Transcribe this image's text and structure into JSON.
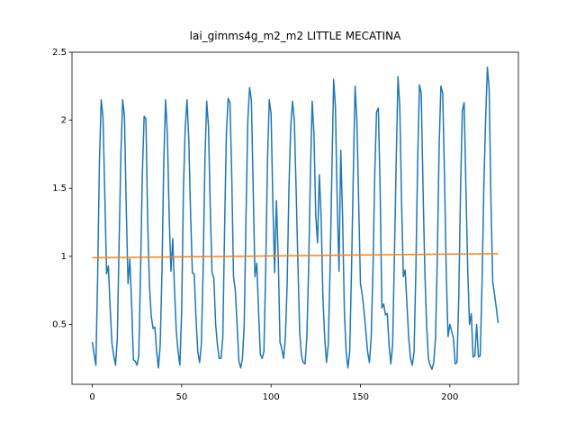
{
  "chart_data": {
    "type": "line",
    "title": "lai_gimms4g_m2_m2 LITTLE MECATINA",
    "xlim": [
      -11.35,
      238.35
    ],
    "xticks": [
      0,
      50,
      100,
      150,
      200
    ],
    "ylim": [
      0.06,
      2.5
    ],
    "yticks": [
      0.5,
      1.0,
      1.5,
      2.0,
      2.5
    ],
    "series": [
      {
        "color": "#1f77b4",
        "x": [
          0,
          1,
          2,
          3,
          4,
          5,
          6,
          7,
          8,
          9,
          10,
          11,
          12,
          13,
          14,
          15,
          16,
          17,
          18,
          19,
          20,
          21,
          22,
          23,
          24,
          25,
          26,
          27,
          28,
          29,
          30,
          31,
          32,
          33,
          34,
          35,
          36,
          37,
          38,
          39,
          40,
          41,
          42,
          43,
          44,
          45,
          46,
          47,
          48,
          49,
          50,
          51,
          52,
          53,
          54,
          55,
          56,
          57,
          58,
          59,
          60,
          61,
          62,
          63,
          64,
          65,
          66,
          67,
          68,
          69,
          70,
          71,
          72,
          73,
          74,
          75,
          76,
          77,
          78,
          79,
          80,
          81,
          82,
          83,
          84,
          85,
          86,
          87,
          88,
          89,
          90,
          91,
          92,
          93,
          94,
          95,
          96,
          97,
          98,
          99,
          100,
          101,
          102,
          103,
          104,
          105,
          106,
          107,
          108,
          109,
          110,
          111,
          112,
          113,
          114,
          115,
          116,
          117,
          118,
          119,
          120,
          121,
          122,
          123,
          124,
          125,
          126,
          127,
          128,
          129,
          130,
          131,
          132,
          133,
          134,
          135,
          136,
          137,
          138,
          139,
          140,
          141,
          142,
          143,
          144,
          145,
          146,
          147,
          148,
          149,
          150,
          151,
          152,
          153,
          154,
          155,
          156,
          157,
          158,
          159,
          160,
          161,
          162,
          163,
          164,
          165,
          166,
          167,
          168,
          169,
          170,
          171,
          172,
          173,
          174,
          175,
          176,
          177,
          178,
          179,
          180,
          181,
          182,
          183,
          184,
          185,
          186,
          187,
          188,
          189,
          190,
          191,
          192,
          193,
          194,
          195,
          196,
          197,
          198,
          199,
          200,
          201,
          202,
          203,
          204,
          205,
          206,
          207,
          208,
          209,
          210,
          211,
          212,
          213,
          214,
          215,
          216,
          217,
          218,
          219,
          220,
          221,
          222,
          223,
          224,
          225,
          226,
          227
        ],
        "values": [
          0.37,
          0.28,
          0.2,
          0.85,
          1.7,
          2.15,
          2.02,
          1.45,
          0.87,
          0.93,
          0.62,
          0.36,
          0.27,
          0.2,
          0.4,
          1.1,
          1.75,
          2.15,
          2.03,
          1.35,
          0.8,
          0.98,
          0.65,
          0.24,
          0.23,
          0.2,
          0.27,
          0.9,
          1.6,
          2.03,
          2.01,
          1.25,
          0.78,
          0.56,
          0.47,
          0.48,
          0.3,
          0.18,
          0.35,
          0.9,
          1.7,
          2.15,
          1.9,
          1.3,
          0.89,
          1.13,
          0.75,
          0.45,
          0.3,
          0.2,
          0.6,
          1.5,
          1.95,
          2.15,
          1.85,
          1.3,
          0.88,
          0.87,
          0.55,
          0.3,
          0.22,
          0.35,
          0.9,
          1.7,
          2.14,
          1.95,
          1.35,
          0.88,
          0.84,
          0.5,
          0.35,
          0.25,
          0.25,
          0.4,
          1.2,
          1.9,
          2.16,
          2.13,
          1.6,
          0.85,
          0.75,
          0.5,
          0.23,
          0.18,
          0.25,
          0.5,
          1.3,
          2.0,
          2.24,
          2.15,
          1.5,
          0.85,
          0.95,
          0.6,
          0.28,
          0.25,
          0.3,
          0.9,
          1.7,
          2.15,
          2.05,
          1.4,
          0.88,
          1.41,
          1.0,
          0.37,
          0.32,
          0.25,
          0.4,
          0.8,
          1.5,
          1.95,
          2.14,
          2.0,
          1.5,
          0.95,
          0.45,
          0.27,
          0.22,
          0.21,
          0.4,
          0.9,
          1.6,
          2.14,
          1.9,
          1.3,
          1.1,
          1.6,
          1.3,
          0.7,
          0.4,
          0.22,
          0.35,
          0.9,
          1.6,
          2.3,
          2.1,
          1.4,
          0.89,
          1.78,
          1.3,
          0.6,
          0.3,
          0.18,
          0.3,
          0.9,
          1.6,
          2.25,
          2.0,
          1.4,
          0.8,
          0.72,
          0.6,
          0.45,
          0.3,
          0.22,
          0.4,
          0.9,
          1.6,
          2.06,
          2.09,
          1.5,
          0.62,
          0.65,
          0.57,
          0.58,
          0.35,
          0.21,
          0.35,
          1.0,
          1.7,
          2.32,
          2.1,
          1.4,
          0.85,
          0.9,
          0.65,
          0.4,
          0.25,
          0.2,
          0.3,
          0.9,
          1.7,
          2.26,
          2.2,
          1.5,
          0.9,
          0.5,
          0.25,
          0.2,
          0.17,
          0.22,
          0.4,
          1.0,
          1.8,
          2.25,
          2.2,
          1.6,
          0.88,
          0.41,
          0.5,
          0.45,
          0.4,
          0.21,
          0.22,
          0.7,
          1.5,
          2.07,
          2.13,
          1.5,
          0.9,
          0.5,
          0.58,
          0.26,
          0.27,
          0.5,
          0.26,
          0.27,
          0.8,
          1.5,
          2.0,
          2.39,
          2.23,
          1.4,
          0.81,
          0.72,
          0.62,
          0.51
        ]
      },
      {
        "color": "#ff7f0e",
        "x": [
          0,
          227
        ],
        "values": [
          0.99,
          1.02
        ]
      }
    ]
  }
}
